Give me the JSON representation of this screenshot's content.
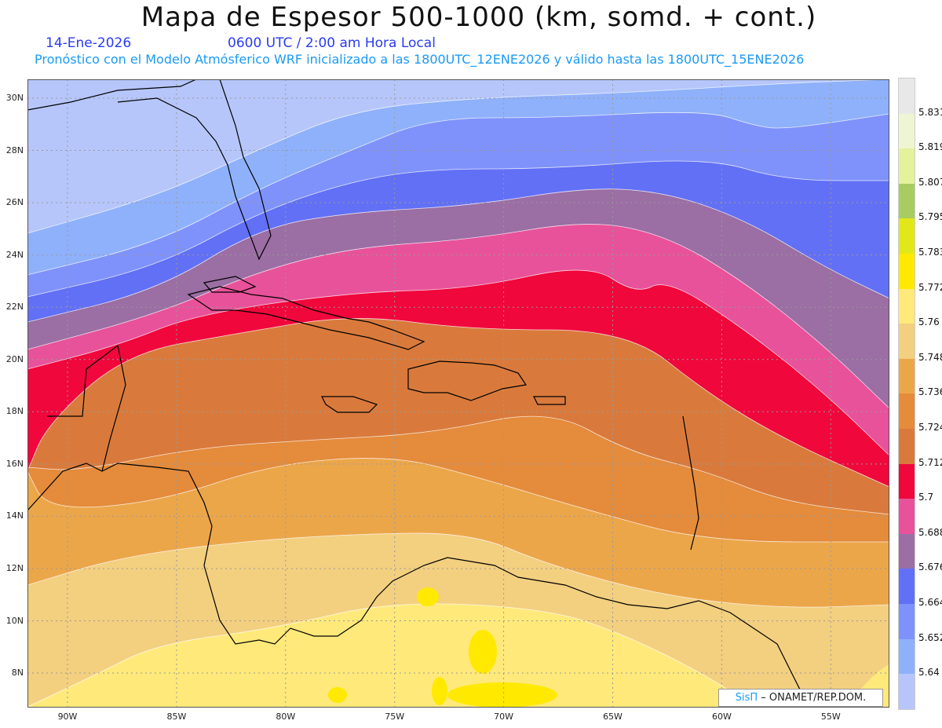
{
  "header": {
    "title": "Mapa de Espesor 500-1000 (km, somd. + cont.)",
    "date": "14-Ene-2026",
    "time": "0600 UTC / 2:00 am Hora Local",
    "description": "Pronóstico con el Modelo Atmósferico WRF inicializado a las 1800UTC_12ENE2026 y válido hasta las  1800UTC_15ENE2026"
  },
  "axes": {
    "lat_labels": [
      "30N",
      "28N",
      "26N",
      "24N",
      "22N",
      "20N",
      "18N",
      "16N",
      "14N",
      "12N",
      "10N",
      "8N"
    ],
    "lon_labels": [
      "90W",
      "85W",
      "80W",
      "75W",
      "70W",
      "65W",
      "60W",
      "55W"
    ]
  },
  "colorbar": {
    "labels": [
      "5.831",
      "5.819",
      "5.807",
      "5.795",
      "5.783",
      "5.772",
      "5.76",
      "5.748",
      "5.736",
      "5.724",
      "5.712",
      "5.7",
      "5.688",
      "5.676",
      "5.664",
      "5.652",
      "5.64"
    ],
    "colors": [
      "#e8e8e8",
      "#eef5d3",
      "#e4f29c",
      "#a8cc60",
      "#e2e817",
      "#ffe900",
      "#ffe97a",
      "#f3cf80",
      "#eca64a",
      "#e48b3c",
      "#d97a3c",
      "#f0073c",
      "#e8529a",
      "#9b6ea4",
      "#6270f5",
      "#7f92fb",
      "#8fb1fb",
      "#b6c6fb"
    ]
  },
  "logo": {
    "brand": "SisΠ",
    "text": "– ONAMET/REP.DOM."
  }
}
